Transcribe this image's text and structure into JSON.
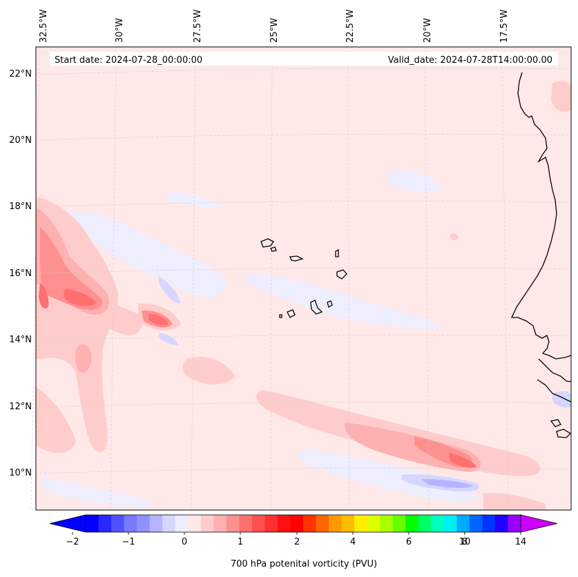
{
  "header": {
    "start_date": "Start date: 2024-07-28_00:00:00",
    "valid_date": "Valid_date: 2024-07-28T14:00:00.00"
  },
  "map": {
    "longitude_labels": [
      "32.5°W",
      "30°W",
      "27.5°W",
      "25°W",
      "22.5°W",
      "20°W",
      "17.5°W"
    ],
    "latitude_labels": [
      "22°N",
      "20°N",
      "18°N",
      "16°N",
      "14°N",
      "12°N",
      "10°N"
    ],
    "background_color": "#ffe8e8"
  },
  "colorbar": {
    "label": "700 hPa potenital vorticity (PVU)",
    "tick_labels": [
      "−2",
      "−1",
      "0",
      "1",
      "2",
      "4",
      "6",
      "8",
      "10",
      "14"
    ],
    "colors": [
      "#0000ff",
      "#2828ff",
      "#5050ff",
      "#7878ff",
      "#9090ff",
      "#b4b4ff",
      "#d6d6ff",
      "#eeeeff",
      "#ffe8e8",
      "#ffcccc",
      "#ffb0b0",
      "#ff9090",
      "#ff7070",
      "#ff5050",
      "#ff3030",
      "#ff1010",
      "#ff0000",
      "#ff3300",
      "#ff6600",
      "#ff9900",
      "#ffbb00",
      "#ffee00",
      "#ddff00",
      "#aaff00",
      "#66ff00",
      "#00ff00",
      "#00ff66",
      "#00ffbb",
      "#00eeee",
      "#00aaff",
      "#0066ff",
      "#0033ff",
      "#2200ff",
      "#9900ff"
    ],
    "extend_low_color": "#0000ff",
    "extend_high_color": "#cc00ff"
  }
}
